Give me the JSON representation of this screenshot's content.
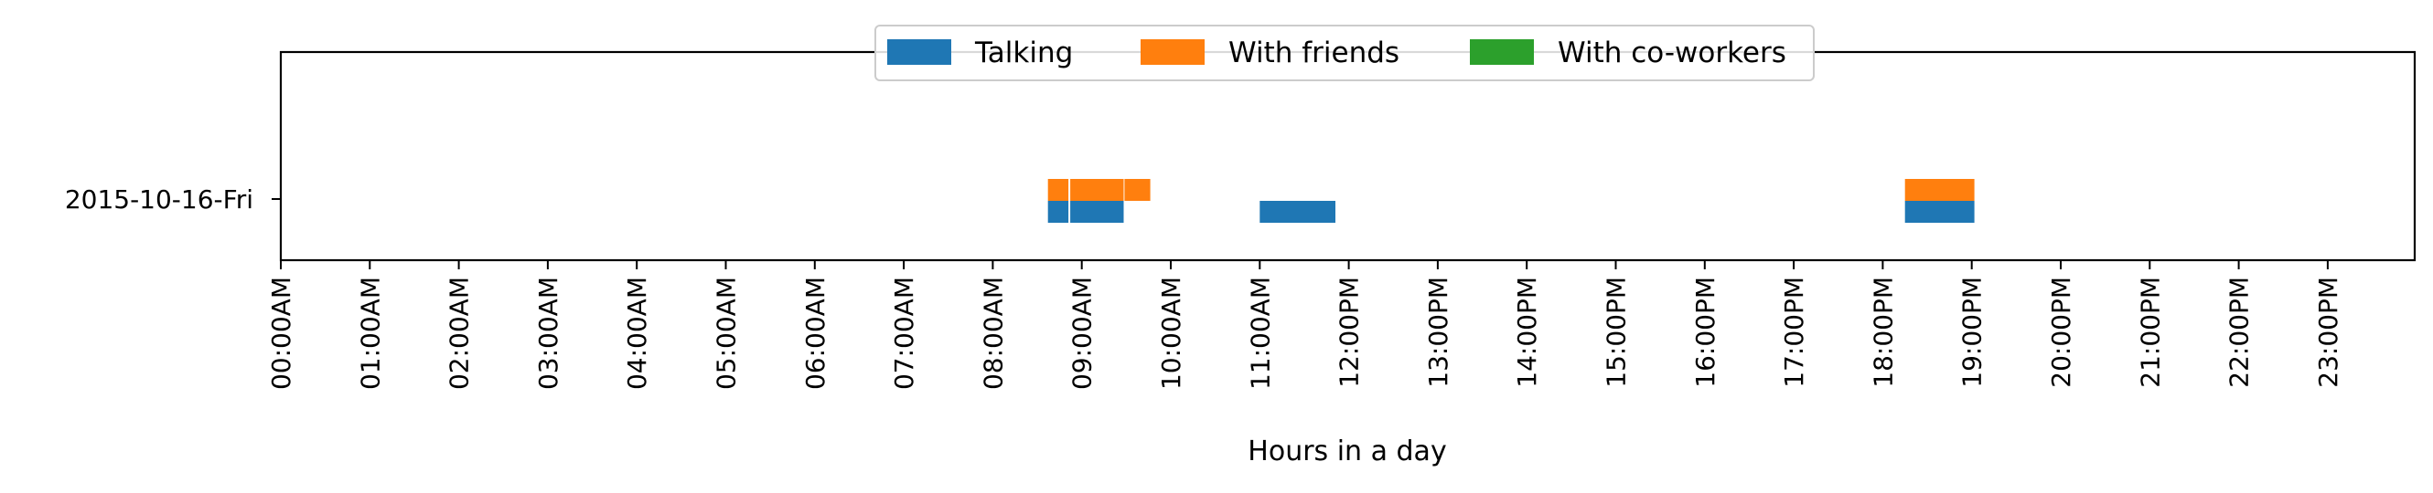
{
  "chart_data": {
    "type": "bar",
    "orientation": "horizontal-timeline",
    "xlabel": "Hours in a day",
    "ylabel": "",
    "xlim": [
      0,
      24
    ],
    "x_tick_labels": [
      "00:00AM",
      "01:00AM",
      "02:00AM",
      "03:00AM",
      "04:00AM",
      "05:00AM",
      "06:00AM",
      "07:00AM",
      "08:00AM",
      "09:00AM",
      "10:00AM",
      "11:00AM",
      "12:00PM",
      "13:00PM",
      "14:00PM",
      "15:00PM",
      "16:00PM",
      "17:00PM",
      "18:00PM",
      "19:00PM",
      "20:00PM",
      "21:00PM",
      "22:00PM",
      "23:00PM"
    ],
    "categories": [
      "2015-10-16-Fri"
    ],
    "grid": false,
    "legend_placement": "top-center",
    "series": [
      {
        "name": "Talking",
        "color": "#1f77b4",
        "intervals": [
          {
            "start": 8.62,
            "end": 8.85
          },
          {
            "start": 8.87,
            "end": 9.47
          },
          {
            "start": 11.0,
            "end": 11.85
          },
          {
            "start": 18.25,
            "end": 19.03
          }
        ]
      },
      {
        "name": "With friends",
        "color": "#ff7f0e",
        "intervals": [
          {
            "start": 8.62,
            "end": 8.85
          },
          {
            "start": 8.87,
            "end": 9.47
          },
          {
            "start": 9.48,
            "end": 9.77
          },
          {
            "start": 18.25,
            "end": 19.03
          }
        ]
      },
      {
        "name": "With co-workers",
        "color": "#2ca02c",
        "intervals": []
      }
    ]
  }
}
